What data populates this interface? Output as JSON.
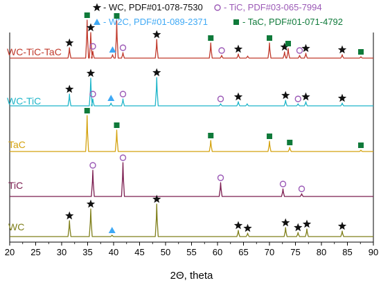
{
  "chart_data": {
    "type": "line",
    "title": "",
    "xlabel": "2Θ, theta",
    "ylabel": "",
    "xlim": [
      20,
      90
    ],
    "x_ticks": [
      20,
      25,
      30,
      35,
      40,
      45,
      50,
      55,
      60,
      65,
      70,
      75,
      80,
      85,
      90
    ],
    "grid": false,
    "legend_position": "top",
    "legend": [
      {
        "symbol": "star",
        "label": "- WC, PDF#01-078-7530",
        "color": "#111111"
      },
      {
        "symbol": "circle",
        "label": "- TiC, PDF#03-065-7994",
        "color": "#9b59b6"
      },
      {
        "symbol": "triangle",
        "label": "- W2C, PDF#01-089-2371",
        "color": "#3fa9f5"
      },
      {
        "symbol": "square",
        "label": "- TaC, PDF#01-071-4792",
        "color": "#0f7a3a"
      }
    ],
    "series": [
      {
        "name": "WC-TiC-TaC",
        "color": "#c0392b",
        "peaks": [
          {
            "x": 31.5,
            "h": 15,
            "m": "star"
          },
          {
            "x": 34.9,
            "h": 55,
            "m": "square"
          },
          {
            "x": 35.6,
            "h": 37,
            "m": "star"
          },
          {
            "x": 36.0,
            "h": 10,
            "m": "circle"
          },
          {
            "x": 39.8,
            "h": 5,
            "m": "triangle"
          },
          {
            "x": 40.6,
            "h": 54,
            "m": "square"
          },
          {
            "x": 41.8,
            "h": 8,
            "m": "circle"
          },
          {
            "x": 48.3,
            "h": 27,
            "m": "star"
          },
          {
            "x": 58.7,
            "h": 22,
            "m": "square"
          },
          {
            "x": 60.8,
            "h": 4,
            "m": "circle"
          },
          {
            "x": 64.0,
            "h": 6,
            "m": "star"
          },
          {
            "x": 65.8,
            "h": 3,
            "m": null
          },
          {
            "x": 70.0,
            "h": 22,
            "m": "square"
          },
          {
            "x": 72.9,
            "h": 9,
            "m": "star"
          },
          {
            "x": 73.6,
            "h": 14,
            "m": "square"
          },
          {
            "x": 75.8,
            "h": 4,
            "m": "circle"
          },
          {
            "x": 77.0,
            "h": 7,
            "m": "star"
          },
          {
            "x": 84.0,
            "h": 5,
            "m": "star"
          },
          {
            "x": 87.6,
            "h": 2,
            "m": "square"
          }
        ]
      },
      {
        "name": "WC-TiC",
        "color": "#1fb5c9",
        "peaks": [
          {
            "x": 31.5,
            "h": 17,
            "m": "star"
          },
          {
            "x": 35.6,
            "h": 40,
            "m": "star"
          },
          {
            "x": 36.0,
            "h": 10,
            "m": "circle"
          },
          {
            "x": 39.5,
            "h": 4,
            "m": "triangle"
          },
          {
            "x": 41.8,
            "h": 10,
            "m": "circle"
          },
          {
            "x": 48.3,
            "h": 41,
            "m": "star"
          },
          {
            "x": 60.6,
            "h": 3,
            "m": "circle"
          },
          {
            "x": 64.0,
            "h": 6,
            "m": "star"
          },
          {
            "x": 65.7,
            "h": 3,
            "m": null
          },
          {
            "x": 73.1,
            "h": 8,
            "m": "star"
          },
          {
            "x": 75.5,
            "h": 3,
            "m": "circle"
          },
          {
            "x": 77.0,
            "h": 6,
            "m": "star"
          },
          {
            "x": 84.0,
            "h": 4,
            "m": "star"
          }
        ]
      },
      {
        "name": "TaC",
        "color": "#d4a20e",
        "peaks": [
          {
            "x": 34.9,
            "h": 52,
            "m": "square"
          },
          {
            "x": 40.6,
            "h": 31,
            "m": "square"
          },
          {
            "x": 58.7,
            "h": 16,
            "m": "square"
          },
          {
            "x": 70.0,
            "h": 15,
            "m": "square"
          },
          {
            "x": 73.9,
            "h": 6,
            "m": "square"
          },
          {
            "x": 87.6,
            "h": 2,
            "m": "square"
          }
        ]
      },
      {
        "name": "TiC",
        "color": "#7b1c4f",
        "peaks": [
          {
            "x": 36.0,
            "h": 38,
            "m": "circle"
          },
          {
            "x": 41.8,
            "h": 49,
            "m": "circle"
          },
          {
            "x": 60.6,
            "h": 20,
            "m": "circle"
          },
          {
            "x": 72.6,
            "h": 11,
            "m": "circle"
          },
          {
            "x": 76.2,
            "h": 4,
            "m": "circle"
          }
        ]
      },
      {
        "name": "WC",
        "color": "#7f7f1a",
        "peaks": [
          {
            "x": 31.5,
            "h": 23,
            "m": "star"
          },
          {
            "x": 35.6,
            "h": 40,
            "m": "star"
          },
          {
            "x": 39.7,
            "h": 2,
            "m": "triangle"
          },
          {
            "x": 48.3,
            "h": 47,
            "m": "star"
          },
          {
            "x": 64.0,
            "h": 9,
            "m": "star"
          },
          {
            "x": 65.8,
            "h": 5,
            "m": "star"
          },
          {
            "x": 73.1,
            "h": 13,
            "m": "star"
          },
          {
            "x": 75.5,
            "h": 6,
            "m": "star"
          },
          {
            "x": 77.2,
            "h": 11,
            "m": "star"
          },
          {
            "x": 84.0,
            "h": 8,
            "m": "star"
          }
        ]
      }
    ],
    "marker_colors": {
      "star": "#111111",
      "circle": "#9b59b6",
      "triangle": "#3fa9f5",
      "square": "#0f7a3a"
    }
  }
}
